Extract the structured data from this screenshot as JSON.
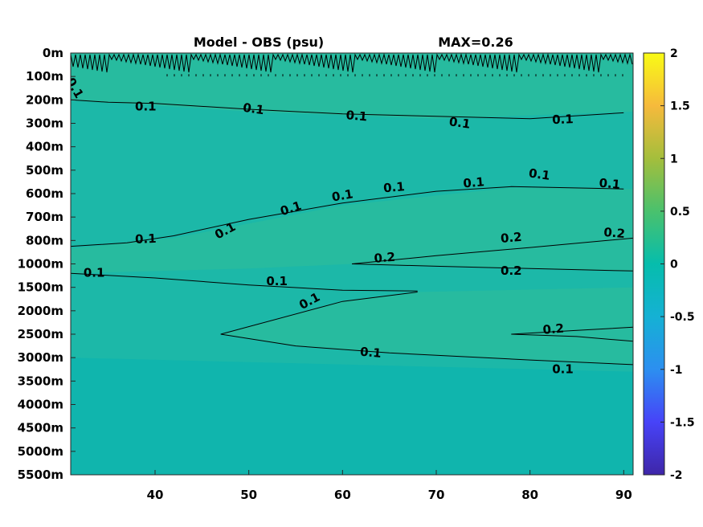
{
  "chart_data": {
    "type": "heatmap",
    "title_left": "Model - OBS (psu)",
    "title_right": "MAX=0.26",
    "xlim": [
      31,
      91
    ],
    "x_ticks": [
      40,
      50,
      60,
      70,
      80,
      90
    ],
    "y_ticks": [
      "0m",
      "100m",
      "200m",
      "300m",
      "400m",
      "500m",
      "600m",
      "700m",
      "800m",
      "1000m",
      "1500m",
      "2000m",
      "2500m",
      "3000m",
      "3500m",
      "4000m",
      "4500m",
      "5000m",
      "5500m"
    ],
    "colorbar": {
      "range": [
        -2,
        2
      ],
      "ticks": [
        "2",
        "1.5",
        "1",
        "0.5",
        "0",
        "-0.5",
        "-1",
        "-1.5",
        "-2"
      ],
      "colormap": [
        "#3e26a8",
        "#4743f8",
        "#2c8ff0",
        "#15b1d4",
        "#06bdac",
        "#4ac16d",
        "#a4be3c",
        "#f6ba3c",
        "#f9fb15"
      ]
    },
    "field_colors": {
      "background": "#1cb8a8",
      "warm_band": "#27bb9f",
      "deep": "#10b5ad"
    },
    "contours": [
      {
        "level": "0.1",
        "points": [
          [
            31,
            200
          ],
          [
            35,
            210
          ],
          [
            40,
            215
          ],
          [
            50,
            240
          ],
          [
            60,
            260
          ],
          [
            70,
            270
          ],
          [
            80,
            280
          ],
          [
            90,
            255
          ]
        ]
      },
      {
        "level": "0.1",
        "points": [
          [
            31,
            850
          ],
          [
            37,
            820
          ],
          [
            42,
            780
          ],
          [
            50,
            710
          ],
          [
            60,
            640
          ],
          [
            70,
            590
          ],
          [
            78,
            570
          ],
          [
            90,
            580
          ]
        ]
      },
      {
        "level": "0.2",
        "points": [
          [
            61,
            1000
          ],
          [
            70,
            930
          ],
          [
            80,
            860
          ],
          [
            91,
            790
          ]
        ]
      },
      {
        "level": "0.2",
        "points": [
          [
            61,
            1000
          ],
          [
            70,
            1050
          ],
          [
            80,
            1100
          ],
          [
            91,
            1150
          ]
        ]
      },
      {
        "level": "0.1",
        "points": [
          [
            31,
            1200
          ],
          [
            40,
            1300
          ],
          [
            50,
            1450
          ],
          [
            60,
            1560
          ],
          [
            68,
            1580
          ]
        ]
      },
      {
        "level": "0.1",
        "points": [
          [
            68,
            1600
          ],
          [
            60,
            1800
          ],
          [
            47,
            2500
          ],
          [
            55,
            2750
          ],
          [
            65,
            2900
          ],
          [
            80,
            3050
          ],
          [
            91,
            3150
          ]
        ]
      },
      {
        "level": "0.2",
        "points": [
          [
            91,
            2350
          ],
          [
            85,
            2420
          ],
          [
            78,
            2500
          ],
          [
            85,
            2550
          ],
          [
            91,
            2650
          ]
        ]
      }
    ],
    "contour_labels": [
      {
        "text": "0.1",
        "x": 31.4,
        "y": 150,
        "angle": 60
      },
      {
        "text": "0.1",
        "x": 39,
        "y": 230,
        "angle": 0
      },
      {
        "text": "0.1",
        "x": 50.5,
        "y": 240,
        "angle": 8
      },
      {
        "text": "0.1",
        "x": 61.5,
        "y": 270,
        "angle": 5
      },
      {
        "text": "0.1",
        "x": 72.5,
        "y": 300,
        "angle": 8
      },
      {
        "text": "0.1",
        "x": 83.5,
        "y": 285,
        "angle": -2
      },
      {
        "text": "0.1",
        "x": 39,
        "y": 795,
        "angle": -2
      },
      {
        "text": "0.1",
        "x": 47.5,
        "y": 760,
        "angle": -28
      },
      {
        "text": "0.1",
        "x": 54.5,
        "y": 665,
        "angle": -18
      },
      {
        "text": "0.1",
        "x": 60,
        "y": 610,
        "angle": -10
      },
      {
        "text": "0.1",
        "x": 65.5,
        "y": 575,
        "angle": -5
      },
      {
        "text": "0.1",
        "x": 74,
        "y": 555,
        "angle": -5
      },
      {
        "text": "0.1",
        "x": 81,
        "y": 520,
        "angle": 8
      },
      {
        "text": "0.1",
        "x": 88.5,
        "y": 560,
        "angle": 5
      },
      {
        "text": "0.2",
        "x": 64.5,
        "y": 950,
        "angle": -5
      },
      {
        "text": "0.2",
        "x": 78,
        "y": 790,
        "angle": -5
      },
      {
        "text": "0.2",
        "x": 89,
        "y": 770,
        "angle": 5
      },
      {
        "text": "0.2",
        "x": 78,
        "y": 1150,
        "angle": 0
      },
      {
        "text": "0.1",
        "x": 33.5,
        "y": 1200,
        "angle": 0
      },
      {
        "text": "0.1",
        "x": 53,
        "y": 1380,
        "angle": 0
      },
      {
        "text": "0.1",
        "x": 56.5,
        "y": 1800,
        "angle": -28
      },
      {
        "text": "0.1",
        "x": 63,
        "y": 2900,
        "angle": 5
      },
      {
        "text": "0.1",
        "x": 83.5,
        "y": 3250,
        "angle": 0
      },
      {
        "text": "0.2",
        "x": 82.5,
        "y": 2400,
        "angle": -5
      }
    ]
  }
}
